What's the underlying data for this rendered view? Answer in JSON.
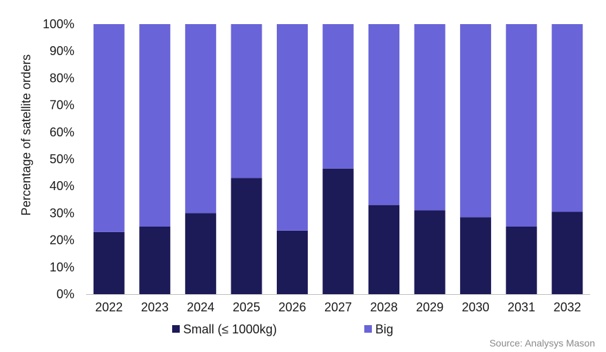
{
  "chart_data": {
    "type": "bar",
    "stacked": true,
    "categories": [
      "2022",
      "2023",
      "2024",
      "2025",
      "2026",
      "2027",
      "2028",
      "2029",
      "2030",
      "2031",
      "2032"
    ],
    "series": [
      {
        "name": "Small (≤ 1000kg)",
        "color": "#1c1a57",
        "values": [
          23,
          25,
          30,
          43,
          23.5,
          46.5,
          33,
          31,
          28.5,
          25,
          30.5
        ]
      },
      {
        "name": "Big",
        "color": "#6964d8",
        "values": [
          77,
          75,
          70,
          57,
          76.5,
          53.5,
          67,
          69,
          71.5,
          75,
          69.5
        ]
      }
    ],
    "ylabel": "Percentage of satellite orders",
    "xlabel": "",
    "ylim": [
      0,
      100
    ],
    "yticks": [
      "0%",
      "10%",
      "20%",
      "30%",
      "40%",
      "50%",
      "60%",
      "70%",
      "80%",
      "90%",
      "100%"
    ],
    "grid": false,
    "legend_position": "bottom"
  },
  "source": "Source: Analysys Mason"
}
